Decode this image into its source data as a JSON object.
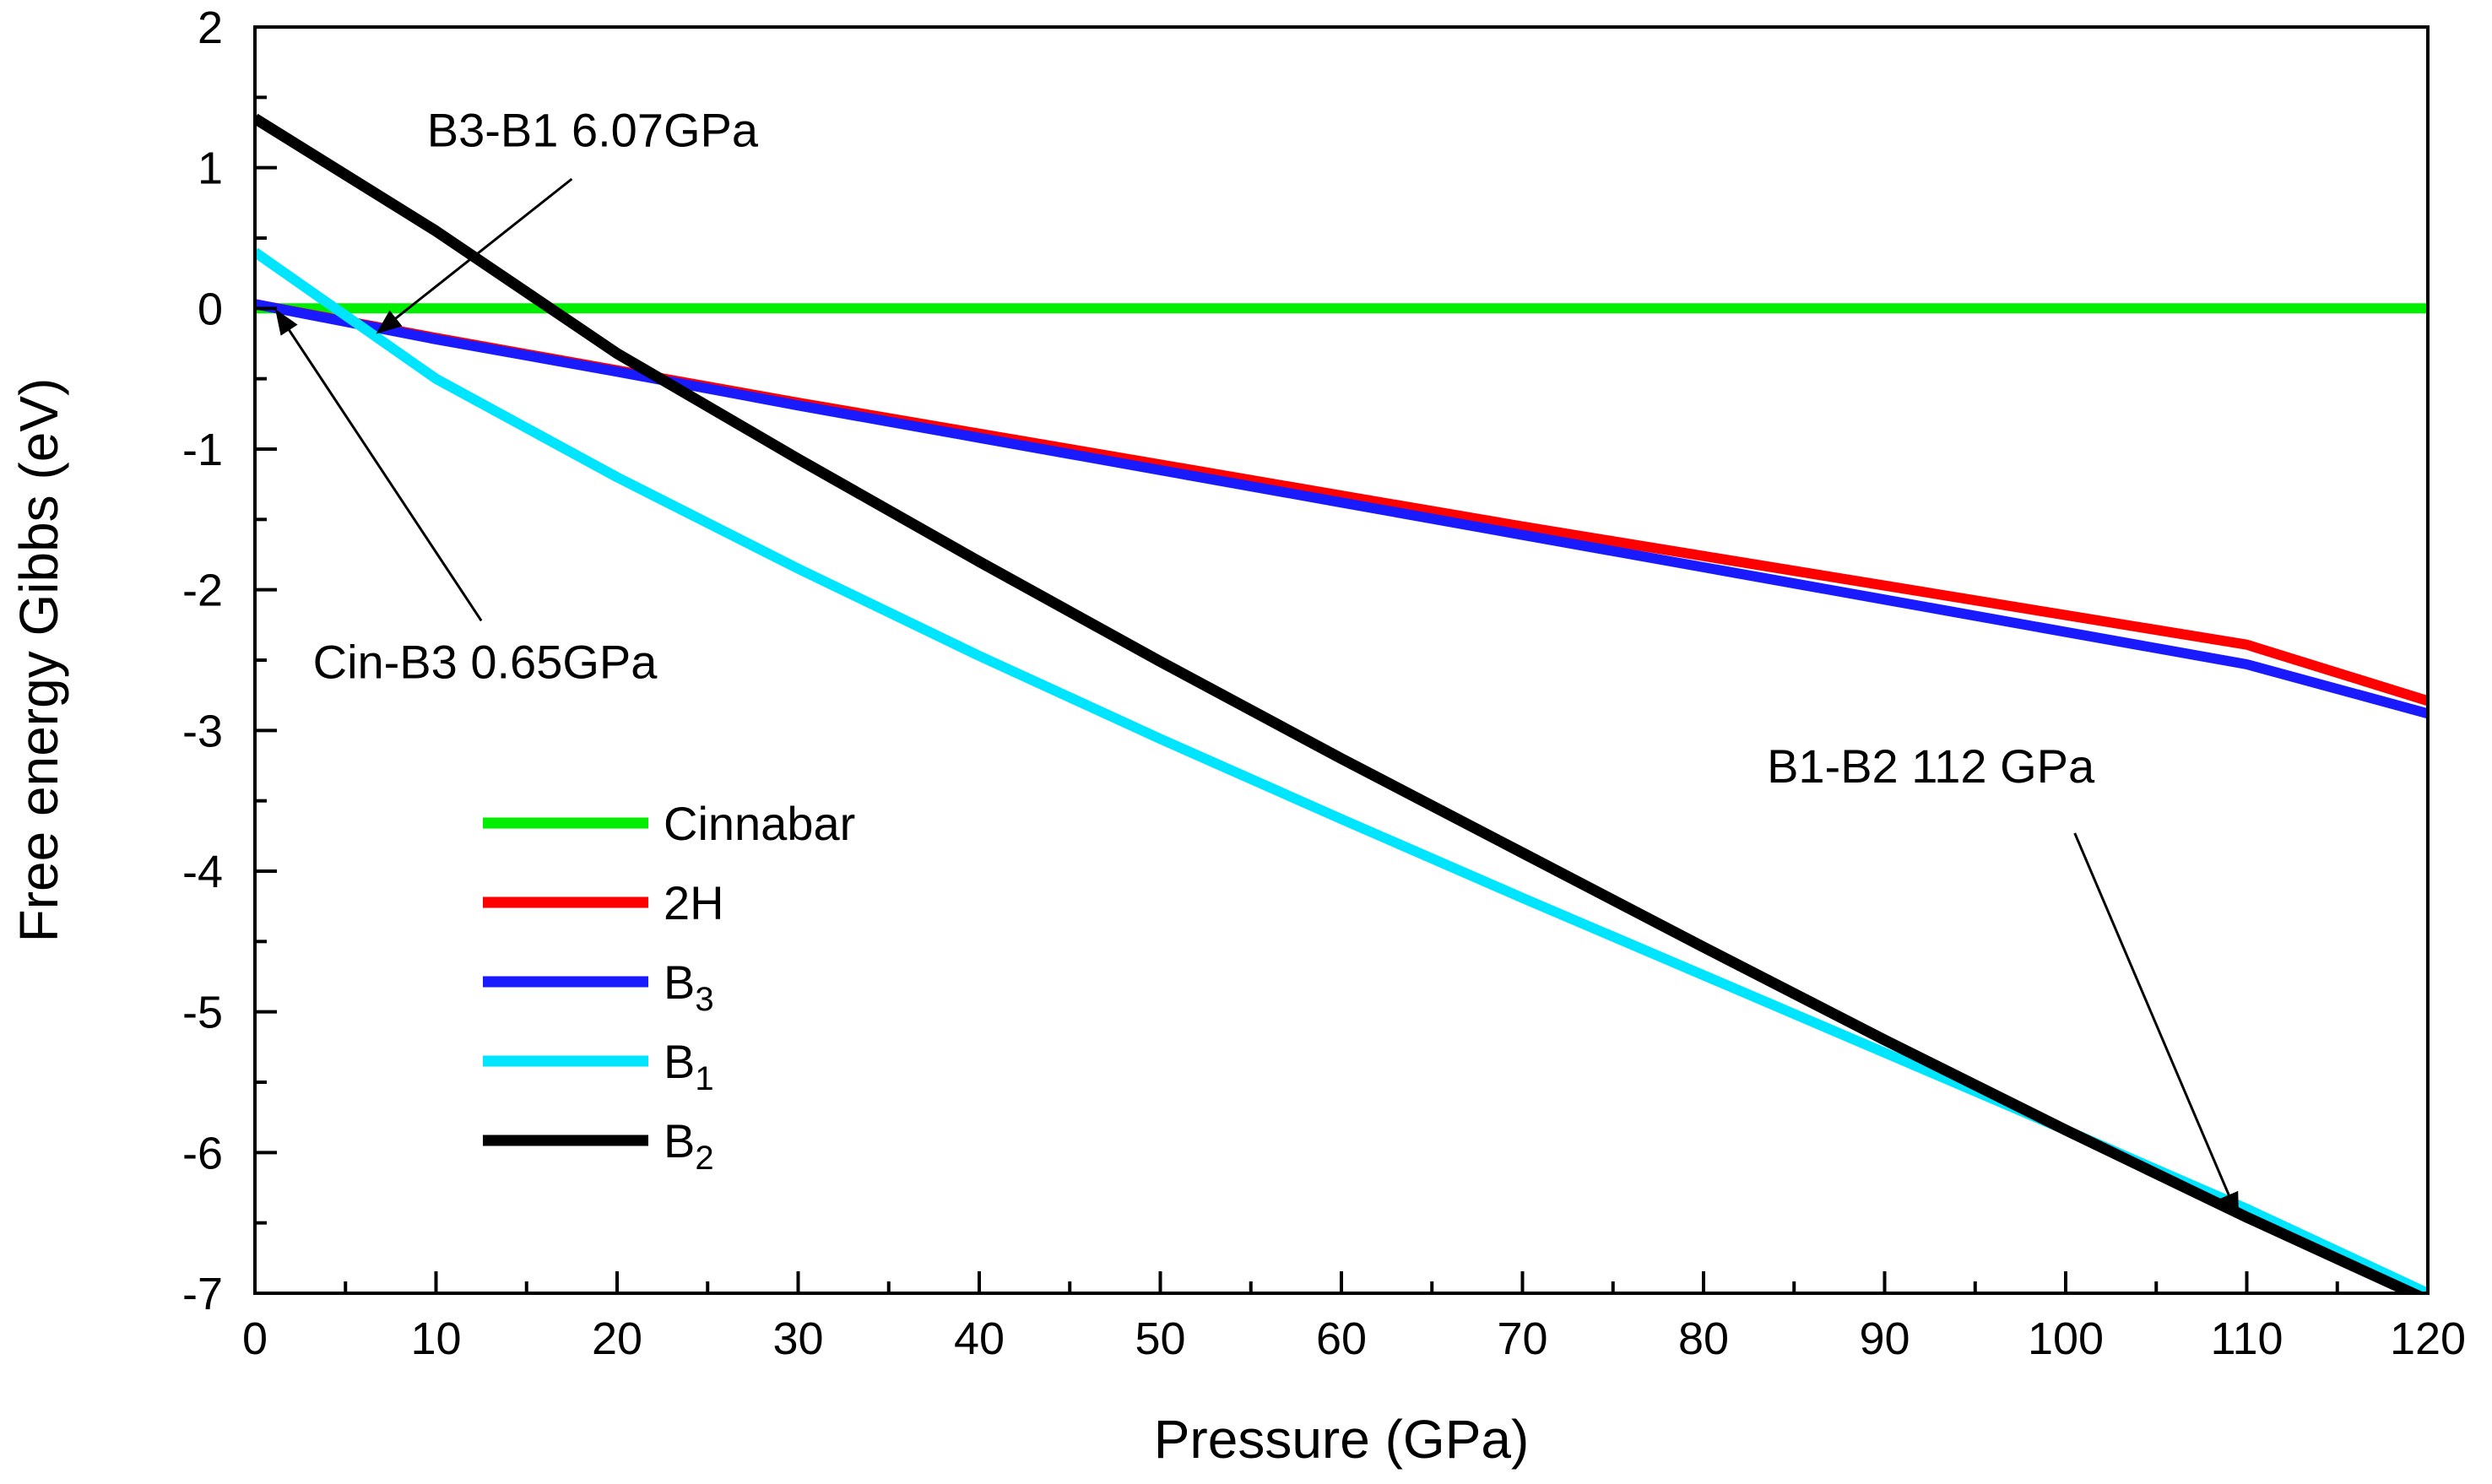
{
  "chart_data": {
    "type": "line",
    "title": "",
    "xlabel": "Pressure (GPa)",
    "ylabel": "Free energy Gibbs (eV)",
    "xlim": [
      0,
      120
    ],
    "ylim": [
      -7,
      2
    ],
    "xticks": [
      0,
      10,
      20,
      30,
      40,
      50,
      60,
      70,
      80,
      90,
      100,
      110,
      120
    ],
    "yticks": [
      2,
      1,
      0,
      -1,
      -2,
      -3,
      -4,
      -5,
      -6,
      -7
    ],
    "xtick_labels": [
      "0",
      "10",
      "20",
      "30",
      "40",
      "50",
      "60",
      "70",
      "80",
      "90",
      "100",
      "110",
      "120"
    ],
    "ytick_labels": [
      "2",
      "1",
      "0",
      "-1",
      "-2",
      "-3",
      "-4",
      "-5",
      "-6",
      "-7"
    ],
    "legend_position": "lower-left-inside",
    "series": [
      {
        "name": "Cinnabar",
        "base": "Cinnabar",
        "sub": "",
        "color": "#00ee00",
        "x": [
          0,
          20,
          40,
          60,
          80,
          100,
          120
        ],
        "y": [
          0,
          0,
          0,
          0,
          0,
          0,
          0
        ]
      },
      {
        "name": "2H",
        "base": "2H",
        "sub": "",
        "color": "#ff0000",
        "x": [
          0,
          10,
          20,
          30,
          40,
          50,
          60,
          70,
          80,
          90,
          100,
          110,
          120
        ],
        "y": [
          0.03,
          -0.21,
          -0.44,
          -0.67,
          -0.89,
          -1.11,
          -1.33,
          -1.55,
          -1.76,
          -1.97,
          -2.18,
          -2.39,
          -2.79
        ]
      },
      {
        "name": "B3",
        "base": "B",
        "sub": "3",
        "color": "#1a1aff",
        "x": [
          0,
          10,
          20,
          30,
          40,
          50,
          60,
          70,
          80,
          90,
          100,
          110,
          120
        ],
        "y": [
          0.03,
          -0.22,
          -0.45,
          -0.69,
          -0.92,
          -1.15,
          -1.38,
          -1.61,
          -1.84,
          -2.07,
          -2.3,
          -2.53,
          -2.88
        ]
      },
      {
        "name": "B1",
        "base": "B",
        "sub": "1",
        "color": "#00e5ff",
        "x": [
          0,
          10,
          20,
          30,
          40,
          50,
          60,
          70,
          80,
          90,
          100,
          110,
          120
        ],
        "y": [
          0.4,
          -0.5,
          -1.2,
          -1.85,
          -2.47,
          -3.06,
          -3.63,
          -4.19,
          -4.74,
          -5.29,
          -5.84,
          -6.4,
          -7.0
        ]
      },
      {
        "name": "B2",
        "base": "B",
        "sub": "2",
        "color": "#000000",
        "x": [
          0,
          10,
          20,
          30,
          40,
          50,
          60,
          70,
          80,
          90,
          100,
          110,
          120
        ],
        "y": [
          1.35,
          0.55,
          -0.32,
          -1.07,
          -1.8,
          -2.51,
          -3.2,
          -3.87,
          -4.54,
          -5.2,
          -5.84,
          -6.46,
          -7.05
        ]
      }
    ],
    "annotations": [
      {
        "text": "B3-B1  6.07GPa",
        "label_at": [
          9.5,
          1.15
        ],
        "arrow_from": [
          17.5,
          0.92
        ],
        "arrow_to": [
          6.8,
          -0.17
        ]
      },
      {
        "text": "Cin-B3  0.65GPa",
        "label_at": [
          3.2,
          -2.63
        ],
        "arrow_from": [
          12.5,
          -2.22
        ],
        "arrow_to": [
          1.2,
          -0.02
        ]
      },
      {
        "text": "B1-B2  112 GPa",
        "label_at": [
          83.5,
          -3.37
        ],
        "arrow_from": [
          100.5,
          -3.73
        ],
        "arrow_to": [
          109.5,
          -6.45
        ]
      }
    ]
  }
}
